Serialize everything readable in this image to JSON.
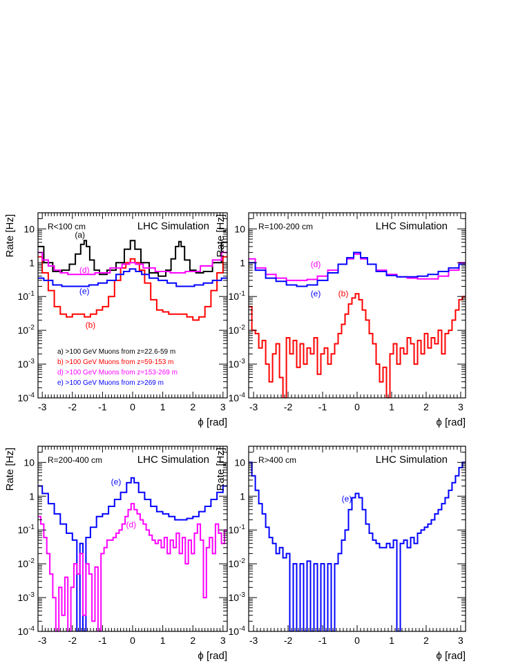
{
  "chart_data": [
    {
      "type": "line",
      "step": true,
      "panel_label": "R<100 cm",
      "watermark": "LHC Simulation",
      "xlabel": "ϕ [rad]",
      "ylabel": "Rate [Hz]",
      "xlim": [
        -3.14159,
        3.14159
      ],
      "ylim": [
        0.0001,
        30
      ],
      "yscale": "log",
      "xticks": [
        "-3",
        "-2",
        "-1",
        "0",
        "1",
        "2",
        "3"
      ],
      "yticks": [
        "10",
        "1",
        "10-1",
        "10-2",
        "10-3",
        "10-4"
      ],
      "legend_placement": "bottom-left",
      "legend": [
        {
          "text": "a) >100 GeV Muons from z=22.6-59 m",
          "color": "#000000"
        },
        {
          "text": "b) >100 GeV Muons from z=59-153 m",
          "color": "#ff0000"
        },
        {
          "text": "d) >100 GeV Muons from z=153-269 m",
          "color": "#ff00ff"
        },
        {
          "text": "e) >100 GeV Muons from z>269 m",
          "color": "#0000ff"
        }
      ],
      "annotations": [
        {
          "text": "(a)",
          "x": -1.75,
          "y": 5.5,
          "color": "#000000"
        },
        {
          "text": "(d)",
          "x": -1.6,
          "y": 0.5,
          "color": "#ff00ff"
        },
        {
          "text": "(e)",
          "x": -1.6,
          "y": 0.12,
          "color": "#0000ff"
        },
        {
          "text": "(b)",
          "x": -1.4,
          "y": 0.012,
          "color": "#ff0000"
        }
      ],
      "series": [
        {
          "name": "a",
          "color": "#000000",
          "x": [
            -3.1,
            -2.8,
            -2.5,
            -2.2,
            -2.0,
            -1.8,
            -1.65,
            -1.57,
            -1.5,
            -1.35,
            -1.2,
            -1.0,
            -0.7,
            -0.4,
            -0.15,
            0.0,
            0.15,
            0.4,
            0.7,
            1.0,
            1.2,
            1.35,
            1.5,
            1.57,
            1.65,
            1.8,
            2.0,
            2.2,
            2.5,
            2.8,
            3.1
          ],
          "y": [
            3.0,
            1.0,
            0.55,
            0.6,
            0.9,
            1.8,
            3.5,
            4.5,
            3.0,
            1.2,
            0.6,
            0.45,
            0.6,
            1.0,
            2.5,
            4.5,
            2.5,
            1.0,
            0.5,
            0.4,
            0.6,
            1.3,
            3.0,
            4.2,
            3.0,
            1.2,
            0.6,
            0.5,
            0.55,
            1.0,
            4.0
          ]
        },
        {
          "name": "b",
          "color": "#ff0000",
          "x": [
            -3.1,
            -2.9,
            -2.7,
            -2.5,
            -2.3,
            -2.1,
            -1.9,
            -1.7,
            -1.5,
            -1.3,
            -1.1,
            -0.9,
            -0.7,
            -0.5,
            -0.3,
            -0.15,
            0.0,
            0.15,
            0.3,
            0.5,
            0.7,
            0.9,
            1.1,
            1.3,
            1.5,
            1.7,
            1.9,
            2.1,
            2.3,
            2.5,
            2.7,
            2.9,
            3.1
          ],
          "y": [
            1.5,
            0.5,
            0.15,
            0.05,
            0.03,
            0.025,
            0.03,
            0.03,
            0.025,
            0.03,
            0.04,
            0.05,
            0.1,
            0.3,
            0.7,
            1.0,
            1.3,
            1.0,
            0.6,
            0.25,
            0.08,
            0.04,
            0.035,
            0.03,
            0.03,
            0.03,
            0.025,
            0.02,
            0.025,
            0.05,
            0.15,
            0.5,
            1.5
          ]
        },
        {
          "name": "d",
          "color": "#ff00ff",
          "x": [
            -3.1,
            -2.9,
            -2.7,
            -2.5,
            -2.3,
            -2.0,
            -1.5,
            -1.0,
            -0.5,
            -0.2,
            0.0,
            0.2,
            0.5,
            1.0,
            1.5,
            2.0,
            2.5,
            2.8,
            3.1
          ],
          "y": [
            2.0,
            1.2,
            0.8,
            0.6,
            0.5,
            0.45,
            0.45,
            0.5,
            0.7,
            0.9,
            1.0,
            0.9,
            0.7,
            0.55,
            0.5,
            0.55,
            0.8,
            1.2,
            2.0
          ]
        },
        {
          "name": "e",
          "color": "#0000ff",
          "x": [
            -3.1,
            -2.8,
            -2.5,
            -2.2,
            -1.9,
            -1.6,
            -1.3,
            -1.0,
            -0.7,
            -0.4,
            -0.2,
            0.0,
            0.2,
            0.4,
            0.7,
            1.0,
            1.3,
            1.6,
            1.9,
            2.2,
            2.5,
            2.8,
            3.1
          ],
          "y": [
            0.35,
            0.3,
            0.22,
            0.2,
            0.2,
            0.2,
            0.22,
            0.25,
            0.3,
            0.45,
            0.55,
            0.65,
            0.55,
            0.45,
            0.35,
            0.3,
            0.25,
            0.2,
            0.2,
            0.22,
            0.25,
            0.3,
            0.35
          ]
        }
      ]
    },
    {
      "type": "line",
      "step": true,
      "panel_label": "R=100-200 cm",
      "watermark": "LHC Simulation",
      "xlabel": "ϕ [rad]",
      "ylabel": "Rate [Hz]",
      "xlim": [
        -3.14159,
        3.14159
      ],
      "ylim": [
        0.0001,
        30
      ],
      "yscale": "log",
      "xticks": [
        "-3",
        "-2",
        "-1",
        "0",
        "1",
        "2",
        "3"
      ],
      "yticks": [
        "10",
        "1",
        "10-1",
        "10-2",
        "10-3",
        "10-4"
      ],
      "annotations": [
        {
          "text": "(d)",
          "x": -1.2,
          "y": 0.75,
          "color": "#ff00ff"
        },
        {
          "text": "(e)",
          "x": -1.2,
          "y": 0.1,
          "color": "#0000ff"
        },
        {
          "text": "(b)",
          "x": -0.4,
          "y": 0.1,
          "color": "#ff0000"
        }
      ],
      "series": [
        {
          "name": "d",
          "color": "#ff00ff",
          "x": [
            -3.1,
            -2.8,
            -2.5,
            -2.2,
            -1.9,
            -1.6,
            -1.3,
            -1.0,
            -0.7,
            -0.4,
            -0.2,
            0.0,
            0.2,
            0.4,
            0.7,
            1.0,
            1.3,
            1.6,
            1.9,
            2.2,
            2.5,
            2.8,
            3.1
          ],
          "y": [
            1.3,
            0.7,
            0.45,
            0.35,
            0.3,
            0.3,
            0.32,
            0.4,
            0.6,
            0.9,
            1.3,
            1.8,
            1.3,
            0.9,
            0.6,
            0.45,
            0.38,
            0.35,
            0.33,
            0.33,
            0.4,
            0.6,
            1.0
          ]
        },
        {
          "name": "e",
          "color": "#0000ff",
          "x": [
            -3.1,
            -2.8,
            -2.5,
            -2.2,
            -1.9,
            -1.6,
            -1.3,
            -1.0,
            -0.7,
            -0.4,
            -0.2,
            0.0,
            0.2,
            0.4,
            0.7,
            1.0,
            1.3,
            1.6,
            1.9,
            2.2,
            2.5,
            2.8,
            3.1
          ],
          "y": [
            1.0,
            0.6,
            0.35,
            0.28,
            0.22,
            0.2,
            0.22,
            0.3,
            0.5,
            0.9,
            1.4,
            2.0,
            1.4,
            0.9,
            0.55,
            0.42,
            0.38,
            0.38,
            0.4,
            0.45,
            0.55,
            0.7,
            0.9
          ]
        },
        {
          "name": "b",
          "color": "#ff0000",
          "x": [
            -3.1,
            -3.0,
            -2.9,
            -2.8,
            -2.7,
            -2.6,
            -2.5,
            -2.4,
            -2.3,
            -2.2,
            -2.1,
            -2.0,
            -1.9,
            -1.8,
            -1.7,
            -1.6,
            -1.5,
            -1.4,
            -1.3,
            -1.2,
            -1.1,
            -1.0,
            -0.9,
            -0.8,
            -0.7,
            -0.6,
            -0.5,
            -0.4,
            -0.3,
            -0.2,
            -0.1,
            0.0,
            0.1,
            0.2,
            0.3,
            0.4,
            0.5,
            0.6,
            0.7,
            0.8,
            0.9,
            1.0,
            1.1,
            1.2,
            1.3,
            1.4,
            1.5,
            1.6,
            1.7,
            1.8,
            1.9,
            2.0,
            2.1,
            2.2,
            2.3,
            2.4,
            2.5,
            2.6,
            2.7,
            2.8,
            2.9,
            3.0,
            3.1
          ],
          "y": [
            0.05,
            0.01,
            0.008,
            0.003,
            0.005,
            0.001,
            0.0003,
            0.002,
            0.004,
            0.0004,
            0.0001,
            0.006,
            0.002,
            0.005,
            0.0008,
            0.004,
            0.001,
            0.003,
            0.002,
            0.006,
            0.0005,
            0.002,
            0.003,
            0.001,
            0.002,
            0.004,
            0.008,
            0.015,
            0.03,
            0.06,
            0.09,
            0.12,
            0.08,
            0.04,
            0.02,
            0.008,
            0.004,
            0.001,
            0.0003,
            0.0008,
            0.0001,
            0.002,
            0.004,
            0.001,
            0.003,
            0.002,
            0.006,
            0.004,
            0.001,
            0.005,
            0.002,
            0.008,
            0.003,
            0.006,
            0.004,
            0.01,
            0.002,
            0.008,
            0.01,
            0.02,
            0.04,
            0.08,
            0.1
          ]
        }
      ]
    },
    {
      "type": "line",
      "step": true,
      "panel_label": "R=200-400 cm",
      "watermark": "LHC Simulation",
      "xlabel": "ϕ [rad]",
      "ylabel": "Rate [Hz]",
      "xlim": [
        -3.14159,
        3.14159
      ],
      "ylim": [
        0.0001,
        30
      ],
      "yscale": "log",
      "xticks": [
        "-3",
        "-2",
        "-1",
        "0",
        "1",
        "2",
        "3"
      ],
      "yticks": [
        "10",
        "1",
        "10-1",
        "10-2",
        "10-3",
        "10-4"
      ],
      "annotations": [
        {
          "text": "(e)",
          "x": -0.55,
          "y": 2.2,
          "color": "#0000ff"
        },
        {
          "text": "(d)",
          "x": -0.05,
          "y": 0.12,
          "color": "#ff00ff"
        }
      ],
      "series": [
        {
          "name": "e",
          "color": "#0000ff",
          "x": [
            -3.1,
            -2.9,
            -2.7,
            -2.5,
            -2.3,
            -2.1,
            -1.9,
            -1.8,
            -1.7,
            -1.6,
            -1.5,
            -1.3,
            -1.1,
            -0.9,
            -0.7,
            -0.5,
            -0.3,
            -0.1,
            0.0,
            0.1,
            0.3,
            0.5,
            0.7,
            0.9,
            1.1,
            1.3,
            1.5,
            1.7,
            1.9,
            2.1,
            2.3,
            2.5,
            2.7,
            2.9,
            3.1
          ],
          "y": [
            2.0,
            1.2,
            0.6,
            0.3,
            0.15,
            0.08,
            0.05,
            0.0001,
            0.04,
            0.0001,
            0.06,
            0.12,
            0.25,
            0.3,
            0.5,
            0.8,
            1.3,
            2.5,
            3.5,
            2.5,
            1.3,
            0.8,
            0.5,
            0.35,
            0.3,
            0.25,
            0.2,
            0.2,
            0.22,
            0.25,
            0.35,
            0.5,
            0.8,
            1.3,
            2.0
          ]
        },
        {
          "name": "d",
          "color": "#ff00ff",
          "x": [
            -3.1,
            -3.0,
            -2.9,
            -2.8,
            -2.7,
            -2.6,
            -2.5,
            -2.4,
            -2.3,
            -2.2,
            -2.1,
            -2.0,
            -1.9,
            -1.8,
            -1.7,
            -1.6,
            -1.5,
            -1.4,
            -1.3,
            -1.2,
            -1.1,
            -1.0,
            -0.9,
            -0.8,
            -0.7,
            -0.6,
            -0.5,
            -0.4,
            -0.3,
            -0.2,
            -0.1,
            0.0,
            0.1,
            0.2,
            0.3,
            0.4,
            0.5,
            0.6,
            0.7,
            0.8,
            0.9,
            1.0,
            1.1,
            1.2,
            1.3,
            1.4,
            1.5,
            1.6,
            1.7,
            1.8,
            1.9,
            2.0,
            2.1,
            2.2,
            2.3,
            2.4,
            2.5,
            2.6,
            2.7,
            2.8,
            2.9,
            3.0,
            3.1
          ],
          "y": [
            0.25,
            0.15,
            0.06,
            0.02,
            0.005,
            0.001,
            0.0001,
            0.002,
            0.0003,
            0.004,
            0.0001,
            0.002,
            0.01,
            0.005,
            0.02,
            0.0003,
            0.01,
            0.005,
            0.0002,
            0.008,
            0.0001,
            0.02,
            0.03,
            0.05,
            0.05,
            0.06,
            0.08,
            0.1,
            0.15,
            0.25,
            0.4,
            0.6,
            0.4,
            0.3,
            0.2,
            0.15,
            0.1,
            0.07,
            0.05,
            0.04,
            0.05,
            0.03,
            0.06,
            0.02,
            0.05,
            0.03,
            0.08,
            0.02,
            0.06,
            0.01,
            0.05,
            0.02,
            0.08,
            0.15,
            0.05,
            0.001,
            0.03,
            0.06,
            0.02,
            0.15,
            0.08,
            0.04,
            0.1
          ]
        }
      ]
    },
    {
      "type": "line",
      "step": true,
      "panel_label": "R>400 cm",
      "watermark": "LHC Simulation",
      "xlabel": "ϕ [rad]",
      "ylabel": "Rate [Hz]",
      "xlim": [
        -3.14159,
        3.14159
      ],
      "ylim": [
        0.0001,
        30
      ],
      "yscale": "log",
      "xticks": [
        "-3",
        "-2",
        "-1",
        "0",
        "1",
        "2",
        "3"
      ],
      "yticks": [
        "10",
        "1",
        "10-1",
        "10-2",
        "10-3",
        "10-4"
      ],
      "annotations": [
        {
          "text": "(e)",
          "x": -0.3,
          "y": 0.7,
          "color": "#0000ff"
        }
      ],
      "series": [
        {
          "name": "e",
          "color": "#0000ff",
          "x": [
            -3.1,
            -3.0,
            -2.9,
            -2.8,
            -2.7,
            -2.6,
            -2.5,
            -2.4,
            -2.3,
            -2.2,
            -2.1,
            -2.0,
            -1.9,
            -1.8,
            -1.7,
            -1.6,
            -1.5,
            -1.4,
            -1.3,
            -1.2,
            -1.1,
            -1.0,
            -0.9,
            -0.8,
            -0.7,
            -0.6,
            -0.5,
            -0.4,
            -0.3,
            -0.2,
            -0.1,
            0.0,
            0.1,
            0.2,
            0.3,
            0.4,
            0.5,
            0.6,
            0.7,
            0.8,
            0.9,
            1.0,
            1.1,
            1.2,
            1.3,
            1.4,
            1.5,
            1.6,
            1.7,
            1.8,
            1.9,
            2.0,
            2.1,
            2.2,
            2.3,
            2.4,
            2.5,
            2.6,
            2.7,
            2.8,
            2.9,
            3.0,
            3.1
          ],
          "y": [
            10,
            4,
            1.5,
            0.6,
            0.3,
            0.12,
            0.06,
            0.04,
            0.02,
            0.03,
            0.015,
            0.02,
            0.0001,
            0.01,
            0.0001,
            0.01,
            0.0001,
            0.012,
            0.0001,
            0.01,
            0.0001,
            0.01,
            0.0001,
            0.01,
            0.0001,
            0.01,
            0.02,
            0.05,
            0.1,
            0.4,
            0.9,
            1.2,
            0.9,
            0.4,
            0.15,
            0.08,
            0.05,
            0.04,
            0.03,
            0.03,
            0.04,
            0.03,
            0.05,
            0.0001,
            0.04,
            0.05,
            0.03,
            0.06,
            0.04,
            0.08,
            0.1,
            0.12,
            0.15,
            0.2,
            0.3,
            0.4,
            0.6,
            0.9,
            1.5,
            2.5,
            4.0,
            7.0,
            10.0
          ]
        }
      ]
    }
  ]
}
